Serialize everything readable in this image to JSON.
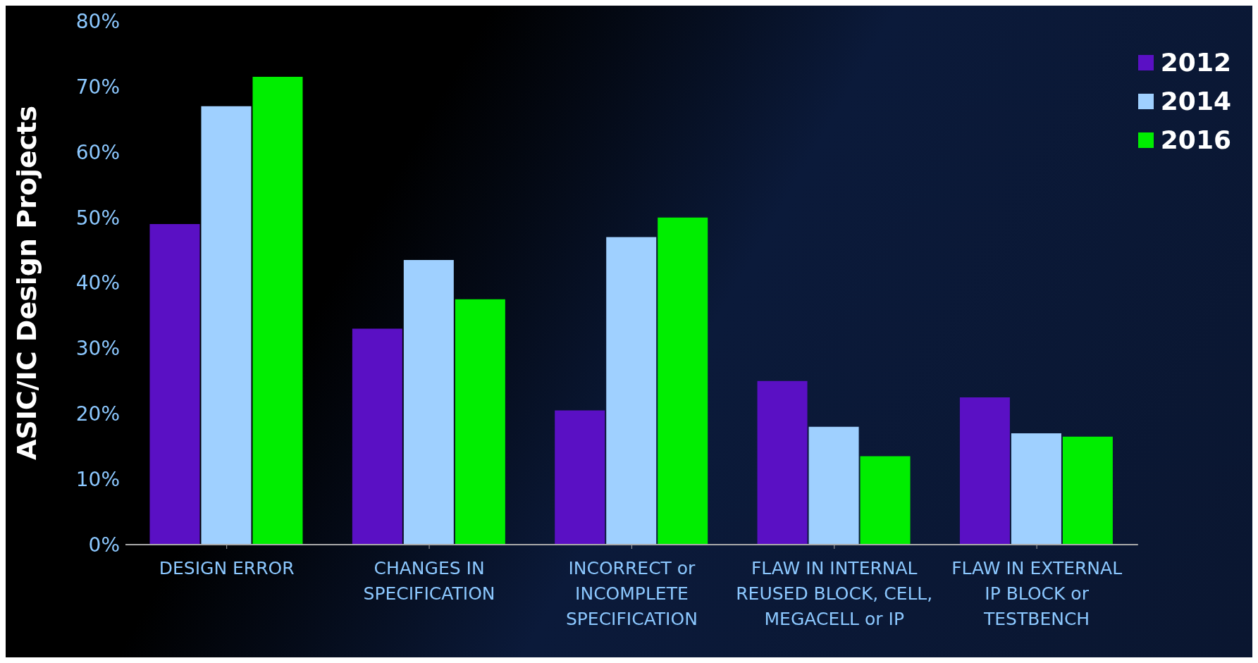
{
  "chart_data": {
    "type": "bar",
    "ylabel": "ASIC/IC Design Projects",
    "categories": [
      "DESIGN ERROR",
      "CHANGES IN SPECIFICATION",
      "INCORRECT or INCOMPLETE SPECIFICATION",
      "FLAW IN INTERNAL REUSED BLOCK, CELL, MEGACELL or IP",
      "FLAW IN EXTERNAL IP BLOCK or TESTBENCH"
    ],
    "series": [
      {
        "name": "2012",
        "color": "#5a10c4",
        "values": [
          49,
          33,
          20.5,
          25,
          22.5
        ]
      },
      {
        "name": "2014",
        "color": "#9fd0ff",
        "values": [
          67,
          43.5,
          47,
          18,
          17
        ]
      },
      {
        "name": "2016",
        "color": "#00ee00",
        "values": [
          71.5,
          37.5,
          50,
          13.5,
          16.5
        ]
      }
    ],
    "ylim": [
      0,
      80
    ],
    "yticks": [
      {
        "value": 0,
        "label": "0%"
      },
      {
        "value": 10,
        "label": "10%"
      },
      {
        "value": 20,
        "label": "20%"
      },
      {
        "value": 30,
        "label": "30%"
      },
      {
        "value": 40,
        "label": "40%"
      },
      {
        "value": 50,
        "label": "50%"
      },
      {
        "value": 60,
        "label": "60%"
      },
      {
        "value": 70,
        "label": "70%"
      },
      {
        "value": 80,
        "label": "80%"
      }
    ],
    "grid": false,
    "legend": "top right"
  }
}
